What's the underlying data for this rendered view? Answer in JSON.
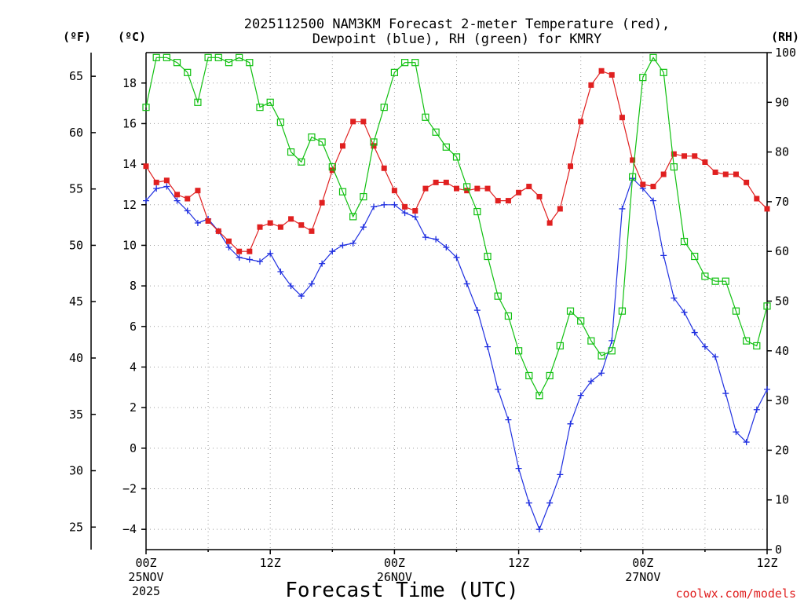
{
  "chart_data": {
    "type": "line",
    "title_line1": "2025112500 NAM3KM Forecast 2-meter Temperature (red),",
    "title_line2": "Dewpoint (blue), RH (green) for KMRY",
    "xlabel": "Forecast Time (UTC)",
    "credit": "coolwx.com/models",
    "unit_left_f": "(ºF)",
    "unit_left_c": "(ºC)",
    "unit_right": "(RH)",
    "x_hours_range": [
      0,
      60
    ],
    "ylim_c": [
      -5,
      19.5
    ],
    "ylim_rh": [
      0,
      100
    ],
    "x_ticks": [
      {
        "hour": 0,
        "label": "00Z",
        "date": "25NOV",
        "year": "2025"
      },
      {
        "hour": 12,
        "label": "12Z",
        "date": "",
        "year": ""
      },
      {
        "hour": 24,
        "label": "00Z",
        "date": "26NOV",
        "year": ""
      },
      {
        "hour": 36,
        "label": "12Z",
        "date": "",
        "year": ""
      },
      {
        "hour": 48,
        "label": "00Z",
        "date": "27NOV",
        "year": ""
      },
      {
        "hour": 60,
        "label": "12Z",
        "date": "",
        "year": ""
      }
    ],
    "y_ticks_c": [
      -4,
      -2,
      0,
      2,
      4,
      6,
      8,
      10,
      12,
      14,
      16,
      18
    ],
    "y_ticks_f": [
      25,
      30,
      35,
      40,
      45,
      50,
      55,
      60,
      65
    ],
    "y_ticks_rh": [
      0,
      10,
      20,
      30,
      40,
      50,
      60,
      70,
      80,
      90,
      100
    ],
    "x_hours": [
      0,
      1,
      2,
      3,
      4,
      5,
      6,
      7,
      8,
      9,
      10,
      11,
      12,
      13,
      14,
      15,
      16,
      17,
      18,
      19,
      20,
      21,
      22,
      23,
      24,
      25,
      26,
      27,
      28,
      29,
      30,
      31,
      32,
      33,
      34,
      35,
      36,
      37,
      38,
      39,
      40,
      41,
      42,
      43,
      44,
      45,
      46,
      47,
      48,
      49,
      50,
      51,
      52,
      53,
      54,
      55,
      56,
      57,
      58,
      59,
      60
    ],
    "series": [
      {
        "name": "2-meter Temperature",
        "units": "C",
        "color": "#e02020",
        "marker": "square-filled",
        "values": [
          13.9,
          13.1,
          13.2,
          12.5,
          12.3,
          12.7,
          11.2,
          10.7,
          10.2,
          9.7,
          9.7,
          10.9,
          11.1,
          10.9,
          11.3,
          11.0,
          10.7,
          12.1,
          13.7,
          14.9,
          16.1,
          16.1,
          14.9,
          13.8,
          12.7,
          11.9,
          11.7,
          12.8,
          13.1,
          13.1,
          12.8,
          12.7,
          12.8,
          12.8,
          12.2,
          12.2,
          12.6,
          12.9,
          12.4,
          11.1,
          11.8,
          13.9,
          16.1,
          17.9,
          18.6,
          18.4,
          16.3,
          14.2,
          13.0,
          12.9,
          13.5,
          14.5,
          14.4,
          14.4,
          14.1,
          13.6,
          13.5,
          13.5,
          13.1,
          12.3,
          11.8
        ]
      },
      {
        "name": "Dewpoint",
        "units": "C",
        "color": "#2030e0",
        "marker": "plus",
        "values": [
          12.2,
          12.8,
          12.9,
          12.2,
          11.7,
          11.1,
          11.3,
          10.7,
          9.9,
          9.4,
          9.3,
          9.2,
          9.6,
          8.7,
          8.0,
          7.5,
          8.1,
          9.1,
          9.7,
          10.0,
          10.1,
          10.9,
          11.9,
          12.0,
          12.0,
          11.6,
          11.4,
          10.4,
          10.3,
          9.9,
          9.4,
          8.1,
          6.8,
          5.0,
          2.9,
          1.4,
          -1.0,
          -2.7,
          -4.0,
          -2.7,
          -1.3,
          1.2,
          2.6,
          3.3,
          3.7,
          5.3,
          11.8,
          13.3,
          12.8,
          12.2,
          9.5,
          7.4,
          6.7,
          5.7,
          5.0,
          4.5,
          2.7,
          0.8,
          0.3,
          1.9,
          2.9
        ]
      },
      {
        "name": "RH",
        "units": "%",
        "color": "#10c010",
        "marker": "square-open",
        "values": [
          89,
          99,
          99,
          98,
          96,
          90,
          99,
          99,
          98,
          99,
          98,
          89,
          90,
          86,
          80,
          78,
          83,
          82,
          77,
          72,
          67,
          71,
          82,
          89,
          96,
          98,
          98,
          87,
          84,
          81,
          79,
          73,
          68,
          59,
          51,
          47,
          40,
          35,
          31,
          35,
          41,
          48,
          46,
          42,
          39,
          40,
          48,
          75,
          95,
          99,
          96,
          77,
          62,
          59,
          55,
          54,
          54,
          48,
          42,
          41,
          49
        ]
      }
    ]
  }
}
